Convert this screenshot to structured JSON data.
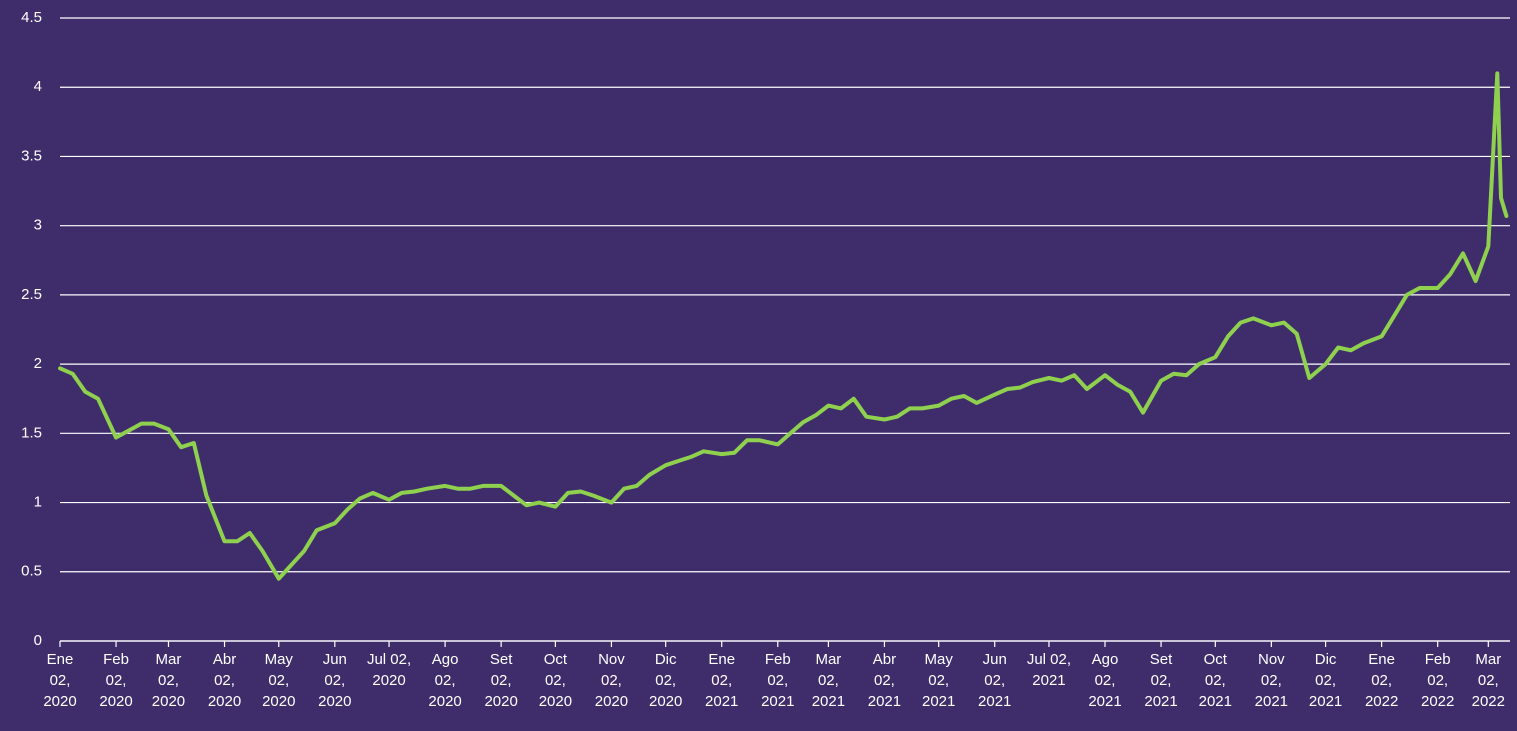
{
  "chart_data": {
    "type": "line",
    "color": "#8fd14f",
    "background": "#3f2d6b",
    "grid": true,
    "x": [
      "2020-01-02",
      "2020-01-09",
      "2020-01-16",
      "2020-01-23",
      "2020-02-02",
      "2020-02-09",
      "2020-02-16",
      "2020-02-23",
      "2020-03-02",
      "2020-03-09",
      "2020-03-16",
      "2020-03-23",
      "2020-04-02",
      "2020-04-09",
      "2020-04-16",
      "2020-04-23",
      "2020-05-02",
      "2020-05-09",
      "2020-05-16",
      "2020-05-23",
      "2020-06-02",
      "2020-06-09",
      "2020-06-16",
      "2020-06-23",
      "2020-07-02",
      "2020-07-09",
      "2020-07-16",
      "2020-07-23",
      "2020-08-02",
      "2020-08-09",
      "2020-08-16",
      "2020-08-23",
      "2020-09-02",
      "2020-09-09",
      "2020-09-16",
      "2020-09-23",
      "2020-10-02",
      "2020-10-09",
      "2020-10-16",
      "2020-10-23",
      "2020-11-02",
      "2020-11-09",
      "2020-11-16",
      "2020-11-23",
      "2020-12-02",
      "2020-12-09",
      "2020-12-16",
      "2020-12-23",
      "2021-01-02",
      "2021-01-09",
      "2021-01-16",
      "2021-01-23",
      "2021-02-02",
      "2021-02-09",
      "2021-02-16",
      "2021-02-23",
      "2021-03-02",
      "2021-03-09",
      "2021-03-16",
      "2021-03-23",
      "2021-04-02",
      "2021-04-09",
      "2021-04-16",
      "2021-04-23",
      "2021-05-02",
      "2021-05-09",
      "2021-05-16",
      "2021-05-23",
      "2021-06-02",
      "2021-06-09",
      "2021-06-16",
      "2021-06-23",
      "2021-07-02",
      "2021-07-09",
      "2021-07-16",
      "2021-07-23",
      "2021-08-02",
      "2021-08-09",
      "2021-08-16",
      "2021-08-23",
      "2021-09-02",
      "2021-09-09",
      "2021-09-16",
      "2021-09-23",
      "2021-10-02",
      "2021-10-09",
      "2021-10-16",
      "2021-10-23",
      "2021-11-02",
      "2021-11-09",
      "2021-11-16",
      "2021-11-23",
      "2021-12-02",
      "2021-12-09",
      "2021-12-16",
      "2021-12-23",
      "2022-01-02",
      "2022-01-09",
      "2022-01-16",
      "2022-01-23",
      "2022-02-02",
      "2022-02-09",
      "2022-02-16",
      "2022-02-23",
      "2022-03-02",
      "2022-03-05",
      "2022-03-07",
      "2022-03-09",
      "2022-03-12"
    ],
    "values": [
      1.97,
      1.93,
      1.8,
      1.75,
      1.47,
      1.52,
      1.57,
      1.57,
      1.53,
      1.4,
      1.43,
      1.05,
      0.72,
      0.72,
      0.78,
      0.65,
      0.45,
      0.55,
      0.65,
      0.8,
      0.85,
      0.95,
      1.03,
      1.07,
      1.02,
      1.07,
      1.08,
      1.1,
      1.12,
      1.1,
      1.1,
      1.12,
      1.12,
      1.05,
      0.98,
      1.0,
      0.97,
      1.07,
      1.08,
      1.05,
      1.0,
      1.1,
      1.12,
      1.2,
      1.27,
      1.3,
      1.33,
      1.37,
      1.35,
      1.36,
      1.45,
      1.45,
      1.42,
      1.5,
      1.58,
      1.63,
      1.7,
      1.68,
      1.75,
      1.62,
      1.6,
      1.62,
      1.68,
      1.68,
      1.7,
      1.75,
      1.77,
      1.72,
      1.78,
      1.82,
      1.83,
      1.87,
      1.9,
      1.88,
      1.92,
      1.82,
      1.92,
      1.85,
      1.8,
      1.65,
      1.88,
      1.93,
      1.92,
      2.0,
      2.05,
      2.2,
      2.3,
      2.33,
      2.28,
      2.3,
      2.22,
      1.9,
      2.0,
      2.12,
      2.1,
      2.15,
      2.2,
      2.35,
      2.5,
      2.55,
      2.55,
      2.65,
      2.8,
      2.6,
      2.85,
      3.6,
      4.1,
      3.2,
      3.07
    ],
    "xlim": [
      "2020-01-02",
      "2022-03-14"
    ],
    "xticks": [
      {
        "value": "2020-01-02",
        "label": "Ene 02, 2020"
      },
      {
        "value": "2020-02-02",
        "label": "Feb 02, 2020"
      },
      {
        "value": "2020-03-02",
        "label": "Mar 02, 2020"
      },
      {
        "value": "2020-04-02",
        "label": "Abr 02, 2020"
      },
      {
        "value": "2020-05-02",
        "label": "May 02, 2020"
      },
      {
        "value": "2020-06-02",
        "label": "Jun 02, 2020"
      },
      {
        "value": "2020-07-02",
        "label": "Jul 02, 2020"
      },
      {
        "value": "2020-08-02",
        "label": "Ago 02, 2020"
      },
      {
        "value": "2020-09-02",
        "label": "Set 02, 2020"
      },
      {
        "value": "2020-10-02",
        "label": "Oct 02, 2020"
      },
      {
        "value": "2020-11-02",
        "label": "Nov 02, 2020"
      },
      {
        "value": "2020-12-02",
        "label": "Dic 02, 2020"
      },
      {
        "value": "2021-01-02",
        "label": "Ene 02, 2021"
      },
      {
        "value": "2021-02-02",
        "label": "Feb 02, 2021"
      },
      {
        "value": "2021-03-02",
        "label": "Mar 02, 2021"
      },
      {
        "value": "2021-04-02",
        "label": "Abr 02, 2021"
      },
      {
        "value": "2021-05-02",
        "label": "May 02, 2021"
      },
      {
        "value": "2021-06-02",
        "label": "Jun 02, 2021"
      },
      {
        "value": "2021-07-02",
        "label": "Jul 02, 2021"
      },
      {
        "value": "2021-08-02",
        "label": "Ago 02, 2021"
      },
      {
        "value": "2021-09-02",
        "label": "Set 02, 2021"
      },
      {
        "value": "2021-10-02",
        "label": "Oct 02, 2021"
      },
      {
        "value": "2021-11-02",
        "label": "Nov 02, 2021"
      },
      {
        "value": "2021-12-02",
        "label": "Dic 02, 2021"
      },
      {
        "value": "2022-01-02",
        "label": "Ene 02, 2022"
      },
      {
        "value": "2022-02-02",
        "label": "Feb 02, 2022"
      },
      {
        "value": "2022-03-02",
        "label": "Mar 02, 2022"
      }
    ],
    "ylim": [
      0,
      4.5
    ],
    "yticks": [
      0,
      0.5,
      1,
      1.5,
      2,
      2.5,
      3,
      3.5,
      4,
      4.5
    ]
  }
}
